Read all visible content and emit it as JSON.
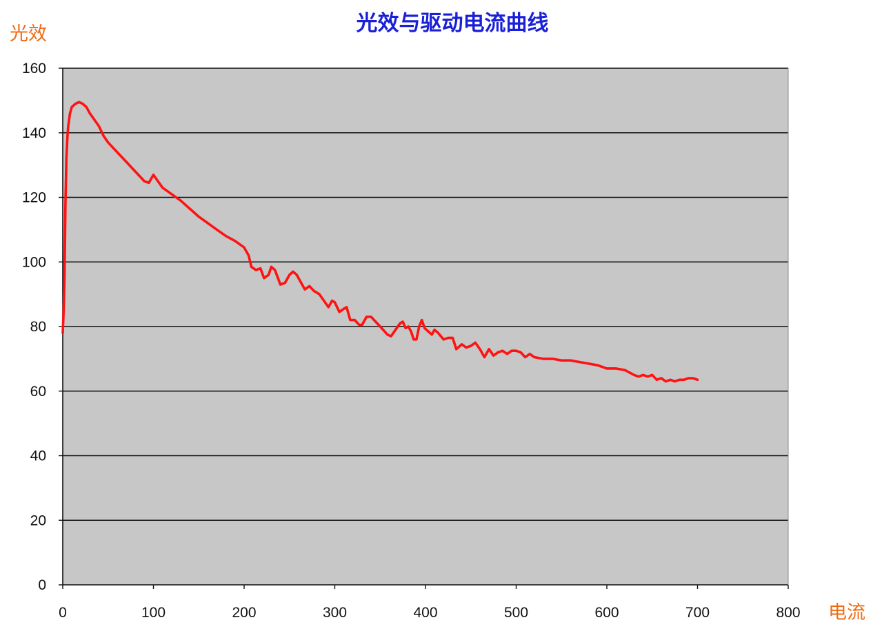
{
  "colors": {
    "title": "#1a20d8",
    "axis_title": "#f06a12",
    "plot_background": "#c7c7c7",
    "gridline": "#111111",
    "series_line": "#ff1212",
    "tick_text": "#111111"
  },
  "chart_data": {
    "type": "line",
    "title": "光效与驱动电流曲线",
    "xlabel": "电流",
    "ylabel": "光效",
    "xlim": [
      0,
      800
    ],
    "ylim": [
      0,
      160
    ],
    "x_ticks": [
      0,
      100,
      200,
      300,
      400,
      500,
      600,
      700,
      800
    ],
    "y_ticks": [
      0,
      20,
      40,
      60,
      80,
      100,
      120,
      140,
      160
    ],
    "grid": "horizontal",
    "legend": "none",
    "series": [
      {
        "color": "#ff1212",
        "points": [
          [
            0,
            78
          ],
          [
            1,
            85
          ],
          [
            2,
            96
          ],
          [
            3,
            118
          ],
          [
            4,
            132
          ],
          [
            5,
            138
          ],
          [
            6,
            142
          ],
          [
            8,
            146
          ],
          [
            10,
            148
          ],
          [
            14,
            149
          ],
          [
            18,
            149.5
          ],
          [
            22,
            149
          ],
          [
            26,
            148
          ],
          [
            30,
            146
          ],
          [
            35,
            144
          ],
          [
            40,
            142
          ],
          [
            45,
            139
          ],
          [
            50,
            137
          ],
          [
            55,
            135.5
          ],
          [
            60,
            134
          ],
          [
            70,
            131
          ],
          [
            80,
            128
          ],
          [
            90,
            125
          ],
          [
            95,
            124.5
          ],
          [
            100,
            127
          ],
          [
            105,
            125
          ],
          [
            110,
            123
          ],
          [
            120,
            121
          ],
          [
            130,
            119
          ],
          [
            140,
            116.5
          ],
          [
            150,
            114
          ],
          [
            160,
            112
          ],
          [
            170,
            110
          ],
          [
            180,
            108
          ],
          [
            190,
            106.5
          ],
          [
            200,
            104.5
          ],
          [
            205,
            102
          ],
          [
            208,
            98.5
          ],
          [
            213,
            97.5
          ],
          [
            218,
            98
          ],
          [
            222,
            95
          ],
          [
            227,
            96
          ],
          [
            230,
            98.5
          ],
          [
            234,
            97.5
          ],
          [
            240,
            93
          ],
          [
            245,
            93.5
          ],
          [
            250,
            96
          ],
          [
            254,
            97
          ],
          [
            258,
            96
          ],
          [
            262,
            94
          ],
          [
            267,
            91.5
          ],
          [
            272,
            92.5
          ],
          [
            277,
            91
          ],
          [
            283,
            90
          ],
          [
            288,
            88
          ],
          [
            293,
            86
          ],
          [
            297,
            88
          ],
          [
            300,
            87.5
          ],
          [
            305,
            84.5
          ],
          [
            310,
            85.5
          ],
          [
            313,
            86
          ],
          [
            317,
            82
          ],
          [
            322,
            82
          ],
          [
            327,
            80.5
          ],
          [
            330,
            80.5
          ],
          [
            335,
            83
          ],
          [
            340,
            83
          ],
          [
            345,
            81.5
          ],
          [
            350,
            80
          ],
          [
            358,
            77.5
          ],
          [
            362,
            77
          ],
          [
            367,
            79
          ],
          [
            372,
            81
          ],
          [
            375,
            81.5
          ],
          [
            378,
            79.5
          ],
          [
            381,
            80
          ],
          [
            384,
            78.5
          ],
          [
            387,
            76
          ],
          [
            390,
            76
          ],
          [
            393,
            80
          ],
          [
            396,
            82
          ],
          [
            399,
            79.5
          ],
          [
            403,
            78.5
          ],
          [
            407,
            77.5
          ],
          [
            410,
            79
          ],
          [
            414,
            78
          ],
          [
            420,
            76
          ],
          [
            425,
            76.5
          ],
          [
            430,
            76.5
          ],
          [
            434,
            73
          ],
          [
            440,
            74.5
          ],
          [
            445,
            73.5
          ],
          [
            450,
            74
          ],
          [
            455,
            75
          ],
          [
            460,
            73
          ],
          [
            465,
            70.5
          ],
          [
            470,
            73
          ],
          [
            475,
            71
          ],
          [
            480,
            72
          ],
          [
            485,
            72.5
          ],
          [
            490,
            71.5
          ],
          [
            495,
            72.5
          ],
          [
            500,
            72.5
          ],
          [
            505,
            72
          ],
          [
            510,
            70.5
          ],
          [
            515,
            71.5
          ],
          [
            520,
            70.5
          ],
          [
            530,
            70
          ],
          [
            540,
            70
          ],
          [
            550,
            69.5
          ],
          [
            560,
            69.5
          ],
          [
            570,
            69
          ],
          [
            580,
            68.5
          ],
          [
            590,
            68
          ],
          [
            600,
            67
          ],
          [
            610,
            67
          ],
          [
            620,
            66.5
          ],
          [
            630,
            65
          ],
          [
            635,
            64.5
          ],
          [
            640,
            65
          ],
          [
            645,
            64.5
          ],
          [
            650,
            65
          ],
          [
            655,
            63.5
          ],
          [
            660,
            64
          ],
          [
            665,
            63
          ],
          [
            670,
            63.5
          ],
          [
            675,
            63
          ],
          [
            680,
            63.5
          ],
          [
            685,
            63.5
          ],
          [
            690,
            64
          ],
          [
            695,
            64
          ],
          [
            700,
            63.5
          ]
        ]
      }
    ]
  }
}
